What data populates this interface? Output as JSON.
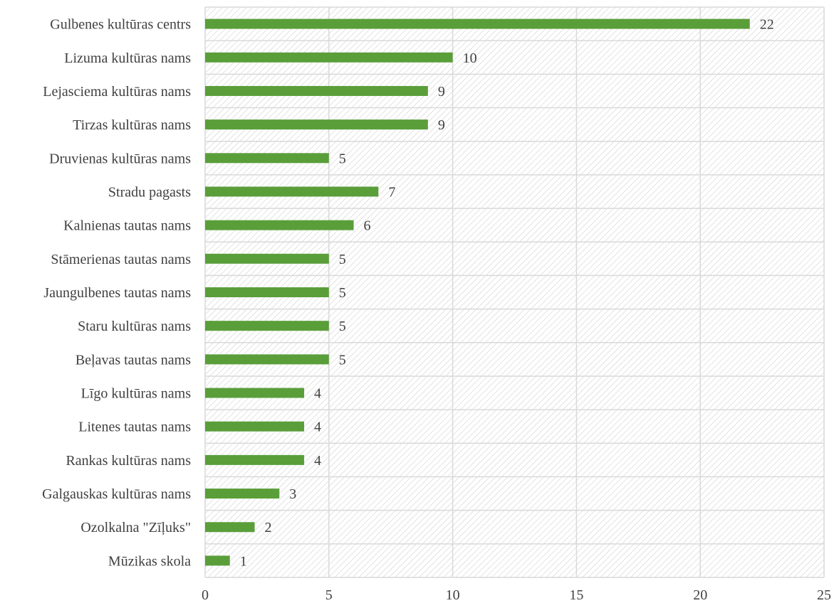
{
  "chart_data": {
    "type": "bar",
    "orientation": "horizontal",
    "categories": [
      "Gulbenes kultūras centrs",
      "Lizuma kultūras nams",
      "Lejasciema kultūras nams",
      "Tirzas kultūras nams",
      "Druvienas kultūras nams",
      "Stradu pagasts",
      "Kalnienas tautas nams",
      "Stāmerienas tautas nams",
      "Jaungulbenes tautas nams",
      "Staru kultūras nams",
      "Beļavas tautas nams",
      "Līgo kultūras nams",
      "Litenes tautas nams",
      "Rankas kultūras nams",
      "Galgauskas kultūras nams",
      "Ozolkalna  \"Zīļuks\"",
      "Mūzikas skola"
    ],
    "values": [
      22,
      10,
      9,
      9,
      5,
      7,
      6,
      5,
      5,
      5,
      5,
      4,
      4,
      4,
      3,
      2,
      1
    ],
    "xlim": [
      0,
      25
    ],
    "xticks": [
      "0",
      "5",
      "10",
      "15",
      "20",
      "25"
    ],
    "title": "",
    "xlabel": "",
    "ylabel": "",
    "grid": true,
    "data_labels": true,
    "legend": "none",
    "colors": {
      "bar": "#5a9e3a",
      "grid": "#d9d9d9",
      "hatch": "#d0d0d0",
      "text": "#404040"
    }
  }
}
